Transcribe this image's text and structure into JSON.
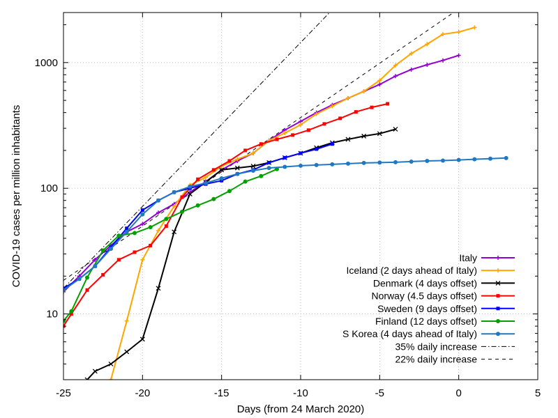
{
  "chart_data": {
    "type": "line",
    "title": "",
    "xlabel": "Days (from 24 March 2020)",
    "ylabel": "COVID-19 cases per million inhabitants",
    "xlim": [
      -25,
      5
    ],
    "ylim": [
      3,
      2500
    ],
    "yscale": "log",
    "grid": true,
    "legend_position": "bottom-right",
    "x_ticks": [
      -25,
      -20,
      -15,
      -10,
      -5,
      0,
      5
    ],
    "x_tick_labels": [
      "-25",
      "-20",
      "-15",
      "-10",
      "-5",
      "0",
      "5"
    ],
    "y_ticks": [
      10,
      100,
      1000
    ],
    "y_tick_labels": [
      "10",
      "100",
      "1000"
    ],
    "series": [
      {
        "name": "Italy",
        "color": "#9400d3",
        "marker": "plus",
        "x": [
          -25,
          -24,
          -23,
          -22,
          -21,
          -20,
          -19,
          -18,
          -17,
          -16,
          -15,
          -14,
          -13,
          -12,
          -11,
          -10,
          -9,
          -8,
          -7,
          -6,
          -5,
          -4,
          -3,
          -2,
          -1,
          0
        ],
        "y": [
          15,
          20,
          27,
          35,
          45,
          52,
          64,
          75,
          93,
          113,
          140,
          165,
          190,
          240,
          290,
          340,
          400,
          460,
          520,
          590,
          670,
          780,
          880,
          960,
          1040,
          1140
        ]
      },
      {
        "name": "Iceland (2 days ahead of Italy)",
        "color": "#ffa500",
        "marker": "plus",
        "x": [
          -22,
          -21,
          -20,
          -19,
          -18,
          -17,
          -16,
          -15,
          -14,
          -13,
          -12,
          -11,
          -10,
          -9,
          -8,
          -7,
          -6,
          -5,
          -4,
          -3,
          -2,
          -1,
          0,
          1
        ],
        "y": [
          3,
          8.8,
          27,
          46,
          72,
          106,
          122,
          150,
          170,
          190,
          240,
          275,
          320,
          390,
          450,
          520,
          590,
          720,
          950,
          1180,
          1400,
          1680,
          1750,
          1900
        ]
      },
      {
        "name": "Denmark (4 days offset)",
        "color": "#000000",
        "marker": "cross",
        "x": [
          -23.5,
          -23,
          -22,
          -21,
          -20,
          -19,
          -18,
          -17,
          -16,
          -15,
          -14,
          -13,
          -12,
          -11,
          -10,
          -9,
          -8,
          -7,
          -6,
          -5,
          -4
        ],
        "y": [
          3,
          3.5,
          4,
          5,
          6.3,
          16,
          45,
          90,
          112,
          140,
          145,
          150,
          160,
          175,
          190,
          210,
          230,
          245,
          260,
          272,
          295
        ]
      },
      {
        "name": "Norway (4.5 days offset)",
        "color": "#ff0000",
        "marker": "square",
        "x": [
          -25,
          -24.5,
          -23.5,
          -22.5,
          -21.5,
          -20.5,
          -19.5,
          -18.5,
          -17.5,
          -16.5,
          -15.5,
          -14.5,
          -13.5,
          -12.5,
          -11.5,
          -10.5,
          -9.5,
          -8.5,
          -7.5,
          -6.5,
          -5.5,
          -4.5
        ],
        "y": [
          8,
          10,
          15.5,
          20.5,
          27,
          31,
          35,
          50,
          85,
          118,
          140,
          165,
          200,
          225,
          245,
          265,
          290,
          325,
          360,
          405,
          440,
          470
        ]
      },
      {
        "name": "Sweden (9 days offset)",
        "color": "#0000ff",
        "marker": "square",
        "x": [
          -25,
          -24,
          -23,
          -22,
          -21,
          -20,
          -19,
          -18,
          -17,
          -16,
          -15,
          -14,
          -13,
          -12,
          -11,
          -10,
          -9,
          -8
        ],
        "y": [
          16,
          19,
          24,
          34,
          48,
          67,
          80,
          93,
          100,
          108,
          115,
          130,
          140,
          160,
          175,
          190,
          205,
          225
        ]
      },
      {
        "name": "Finland (12 days offset)",
        "color": "#00a000",
        "marker": "circle",
        "x": [
          -25,
          -24.5,
          -23.5,
          -22.5,
          -21.5,
          -20.5,
          -19.5,
          -18.5,
          -17.5,
          -16.5,
          -15.5,
          -14.5,
          -13.5,
          -12.5,
          -11.5
        ],
        "y": [
          8.8,
          10.5,
          19.5,
          32,
          42,
          44,
          49,
          57,
          65,
          73,
          82,
          95,
          113,
          125,
          142
        ]
      },
      {
        "name": "S Korea (4 days ahead of Italy)",
        "color": "#1f78c1",
        "marker": "circle",
        "x": [
          -25,
          -24,
          -23,
          -22,
          -21,
          -20,
          -19,
          -18,
          -17,
          -16,
          -15,
          -14,
          -13,
          -12,
          -11,
          -10,
          -9,
          -8,
          -7,
          -6,
          -5,
          -4,
          -3,
          -2,
          -1,
          0,
          1,
          2,
          3
        ],
        "y": [
          15.5,
          19,
          24,
          33,
          45,
          62,
          80,
          93,
          103,
          110,
          120,
          130,
          138,
          145,
          148,
          151,
          153,
          155,
          157,
          159,
          160,
          161,
          163,
          165,
          166,
          168,
          170,
          172,
          174
        ]
      }
    ],
    "reference_lines": [
      {
        "name": "35% daily increase",
        "style": "dash-dot",
        "color": "#000000",
        "x0": -25,
        "y0": 16,
        "daily_factor": 1.35
      },
      {
        "name": "22% daily increase",
        "style": "dashed",
        "color": "#000000",
        "x0": -25,
        "y0": 18.5,
        "daily_factor": 1.22
      }
    ]
  }
}
